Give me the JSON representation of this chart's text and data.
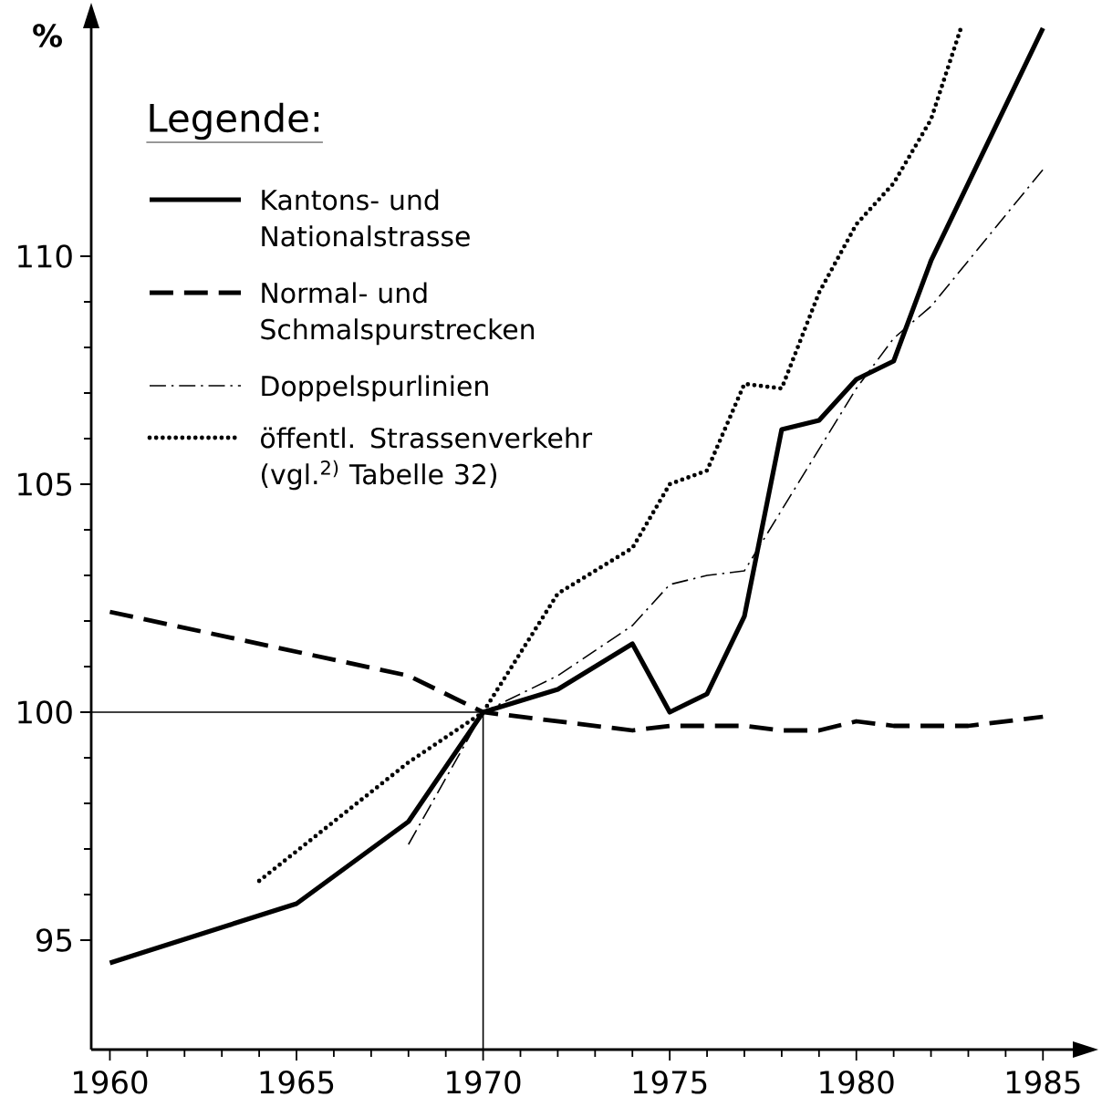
{
  "chart_data": {
    "type": "line",
    "ylabel": "%",
    "legend_title": "Legende:",
    "xlim": [
      1959.5,
      1985.8
    ],
    "ylim": [
      92.6,
      115.0
    ],
    "xticks": [
      1960,
      1965,
      1970,
      1975,
      1980,
      1985
    ],
    "yticks": [
      95,
      100,
      105,
      110
    ],
    "grid": false,
    "legend": "top left",
    "ref_lines": [
      {
        "axis": "y",
        "value": 100
      },
      {
        "axis": "x",
        "value": 1970
      }
    ],
    "series": [
      {
        "name": "Kantons- und Nationalstrasse",
        "color": "#000000",
        "line_style": "solid",
        "x": [
          1960,
          1965,
          1968,
          1970,
          1972,
          1974,
          1975,
          1976,
          1977,
          1978,
          1979,
          1980,
          1981,
          1982,
          1985
        ],
        "values": [
          94.5,
          95.8,
          97.6,
          100,
          100.5,
          101.5,
          100.0,
          100.4,
          102.1,
          106.2,
          106.4,
          107.3,
          107.7,
          109.9,
          115.0
        ]
      },
      {
        "name": "Normal- und Schmalspurstrecken",
        "color": "#000000",
        "line_style": "dashed",
        "x": [
          1960,
          1968,
          1970,
          1972,
          1974,
          1975,
          1976,
          1977,
          1978,
          1979,
          1980,
          1981,
          1982,
          1983,
          1985
        ],
        "values": [
          102.2,
          100.8,
          100,
          99.8,
          99.6,
          99.7,
          99.7,
          99.7,
          99.6,
          99.6,
          99.8,
          99.7,
          99.7,
          99.7,
          99.9
        ]
      },
      {
        "name": "Doppelspurlinien",
        "color": "#000000",
        "line_style": "dashdot",
        "x": [
          1968,
          1970,
          1972,
          1974,
          1975,
          1976,
          1977,
          1980,
          1981,
          1982,
          1985
        ],
        "values": [
          97.1,
          100,
          100.8,
          101.9,
          102.8,
          103.0,
          103.1,
          107.1,
          108.2,
          108.9,
          111.9
        ]
      },
      {
        "name": "öffentl. Strassenverkehr (vgl.$^{2)}$ Tabelle 32)",
        "color": "#000000",
        "line_style": "dotted",
        "x": [
          1964,
          1968,
          1970,
          1972,
          1974,
          1975,
          1976,
          1977,
          1978,
          1979,
          1980,
          1981,
          1982,
          1982.8
        ],
        "values": [
          96.3,
          98.9,
          100,
          102.6,
          103.6,
          105.0,
          105.3,
          107.2,
          107.1,
          109.2,
          110.7,
          111.6,
          113.0,
          115.0
        ]
      }
    ]
  }
}
